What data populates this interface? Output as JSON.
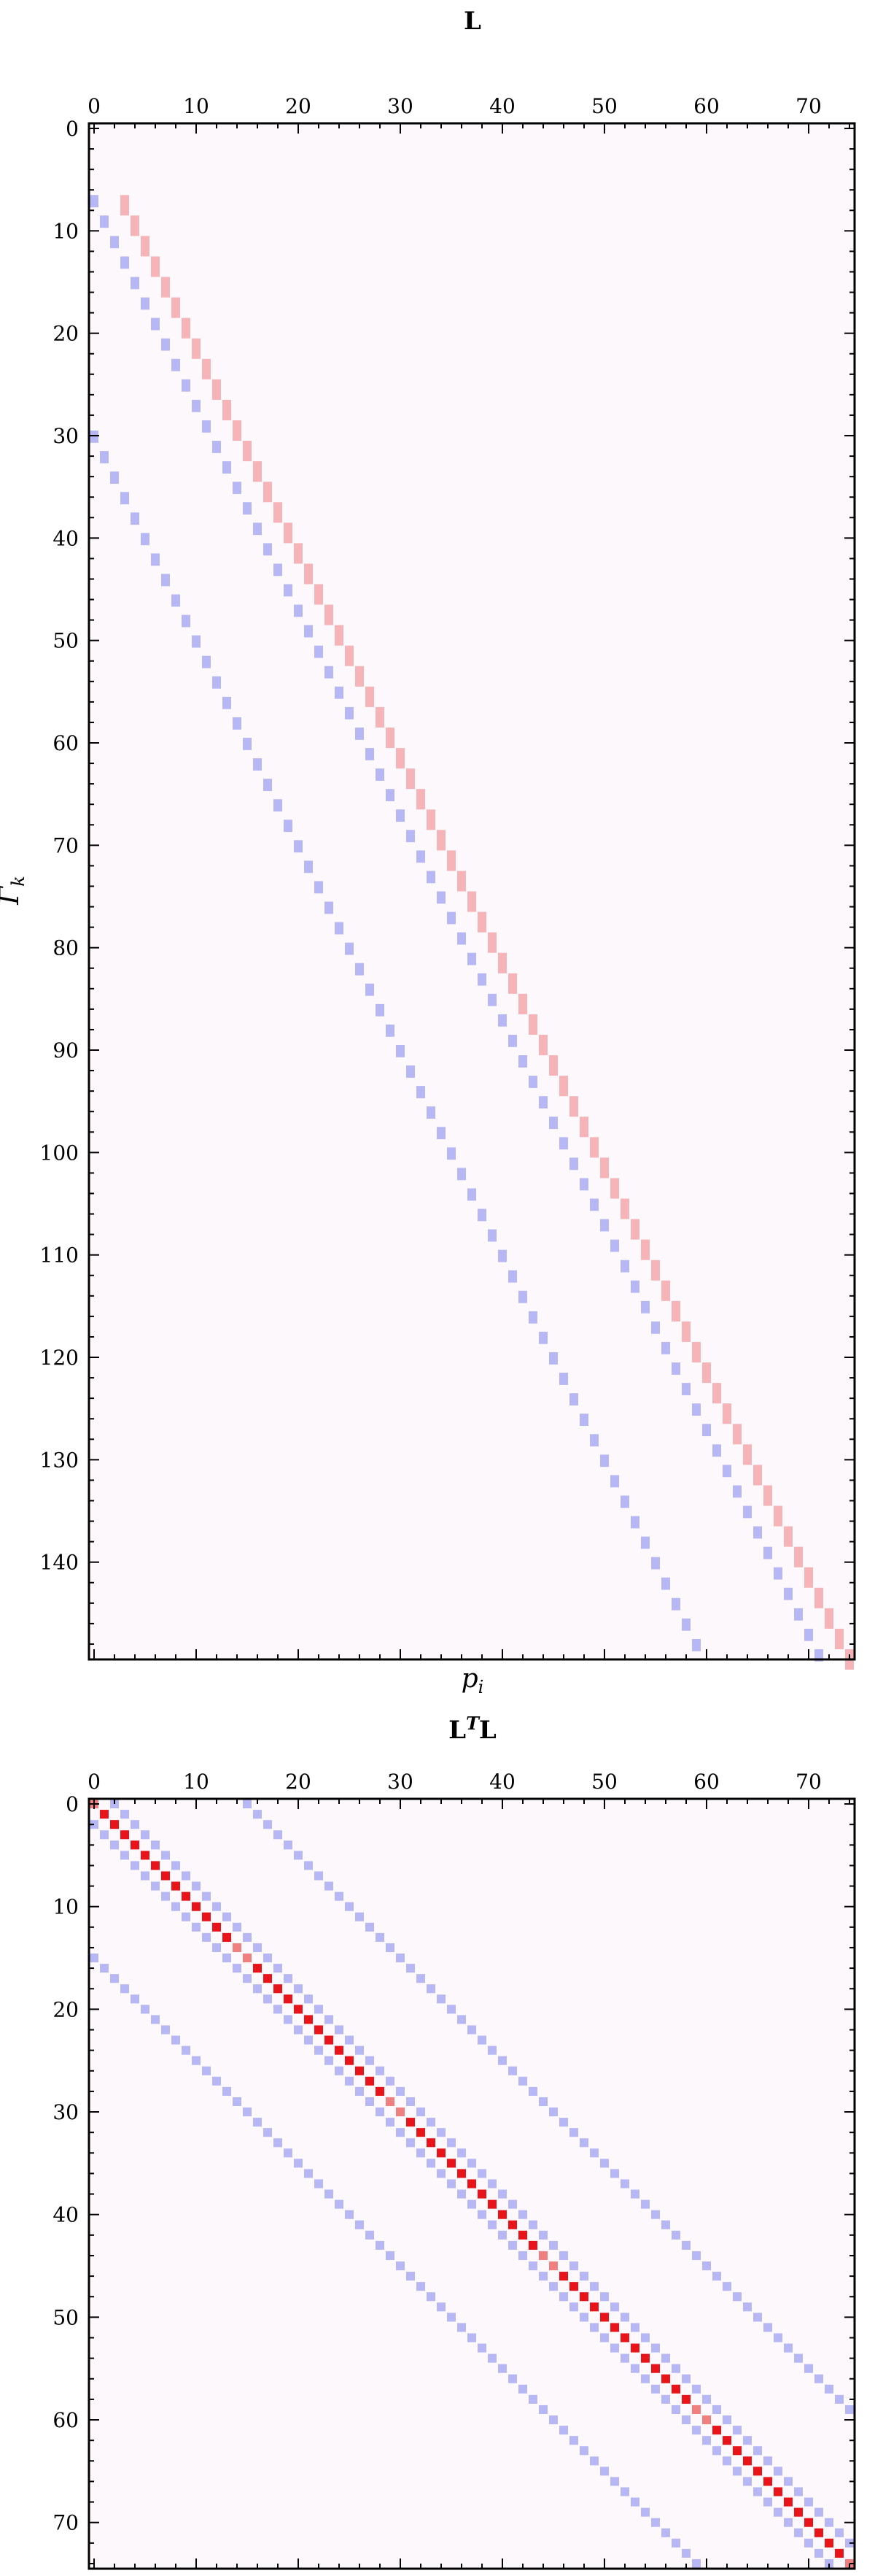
{
  "chart_data": [
    {
      "type": "heatmap",
      "title": "L",
      "xlabel": "p_i",
      "ylabel": "Γ_k",
      "n_cols": 75,
      "n_rows": 150,
      "xlim": [
        0,
        74
      ],
      "ylim": [
        149,
        0
      ],
      "x_ticks": [
        0,
        10,
        20,
        30,
        40,
        50,
        60,
        70
      ],
      "y_ticks": [
        0,
        10,
        20,
        30,
        40,
        50,
        60,
        70,
        80,
        90,
        100,
        110,
        120,
        130,
        140
      ],
      "x_tick_position": "top",
      "background_color": "#fdf8fb",
      "colors": {
        "positive": "#f7b4b8",
        "negative": "#b7b7f6"
      },
      "description_of_pattern": "three diagonal bands: a positive band and two negative bands, each ~2 rows per column",
      "bands": [
        {
          "sign": "positive",
          "start_row": 7,
          "start_col": 3,
          "rows_per_col": 2
        },
        {
          "sign": "negative",
          "start_row": 7,
          "start_col": 0,
          "rows_per_col": 2
        },
        {
          "sign": "negative",
          "start_row": 30,
          "start_col": 0,
          "rows_per_col": 2
        }
      ]
    },
    {
      "type": "heatmap",
      "title": "L^T L",
      "n_cols": 75,
      "n_rows": 75,
      "xlim": [
        0,
        74
      ],
      "ylim": [
        74,
        0
      ],
      "x_ticks": [
        0,
        10,
        20,
        30,
        40,
        50,
        60,
        70
      ],
      "y_ticks": [
        0,
        10,
        20,
        30,
        40,
        50,
        60,
        70
      ],
      "x_tick_position": "top",
      "background_color": "#fdf8fb",
      "colors": {
        "strong_positive": "#e8141a",
        "positive": "#f08080",
        "negative": "#b7b7f6"
      },
      "diagonal": {
        "sign": "strong_positive",
        "offset": 0
      },
      "off_diagonals": [
        {
          "sign": "negative",
          "offset": 2
        },
        {
          "sign": "negative",
          "offset": -2
        },
        {
          "sign": "negative",
          "offset": 15
        },
        {
          "sign": "negative",
          "offset": -15
        }
      ]
    }
  ]
}
